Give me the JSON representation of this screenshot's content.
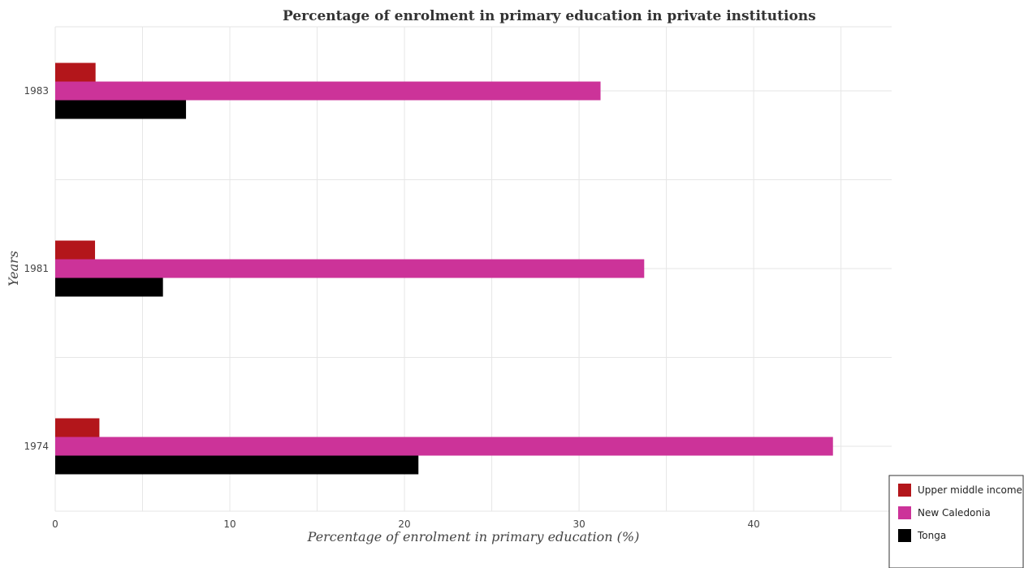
{
  "chart_data": {
    "type": "bar",
    "orientation": "horizontal",
    "title": "Percentage of enrolment in primary education in private institutions",
    "xlabel": "Percentage of enrolment in primary education (%)",
    "ylabel": "Years",
    "categories": [
      "1974",
      "1981",
      "1983"
    ],
    "series": [
      {
        "name": "Upper middle income",
        "color": "#b3161b",
        "values": [
          2.53,
          2.28,
          2.31
        ]
      },
      {
        "name": "New Caledonia",
        "color": "#cc3399",
        "values": [
          44.54,
          33.73,
          31.23
        ]
      },
      {
        "name": "Tonga",
        "color": "#000000",
        "values": [
          20.8,
          6.17,
          7.49
        ]
      }
    ],
    "xlim": [
      0,
      47.9
    ],
    "xticks": [
      0,
      10,
      20,
      30,
      40
    ],
    "grid": true,
    "legend_position": "bottom-right"
  }
}
